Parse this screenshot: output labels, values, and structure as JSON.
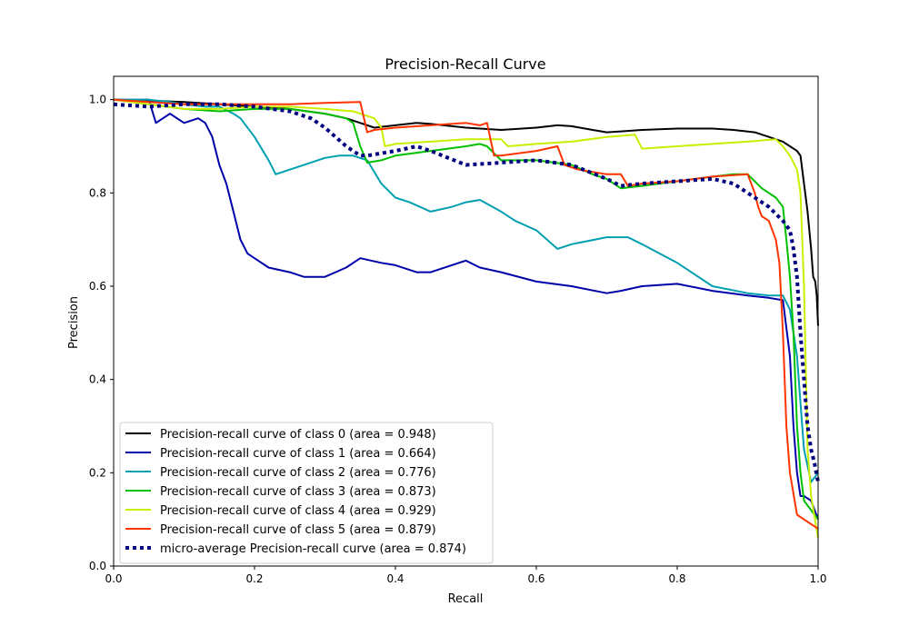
{
  "chart_data": {
    "type": "line",
    "title": "Precision-Recall Curve",
    "xlabel": "Recall",
    "ylabel": "Precision",
    "xlim": [
      0,
      1
    ],
    "ylim": [
      0,
      1.05
    ],
    "xticks": [
      "0.0",
      "0.2",
      "0.4",
      "0.6",
      "0.8",
      "1.0"
    ],
    "yticks": [
      "0.0",
      "0.2",
      "0.4",
      "0.6",
      "0.8",
      "1.0"
    ],
    "grid": false,
    "legend_position": "lower-left",
    "series": [
      {
        "name": "Precision-recall curve of class 0 (area = 0.948)",
        "color": "#000000",
        "style": "solid",
        "x": [
          0.0,
          0.05,
          0.1,
          0.15,
          0.2,
          0.25,
          0.3,
          0.33,
          0.35,
          0.37,
          0.4,
          0.43,
          0.45,
          0.5,
          0.55,
          0.6,
          0.63,
          0.65,
          0.68,
          0.7,
          0.72,
          0.75,
          0.8,
          0.85,
          0.88,
          0.91,
          0.93,
          0.95,
          0.96,
          0.97,
          0.975,
          0.98,
          0.985,
          0.99,
          0.993,
          0.996,
          0.998,
          1.0
        ],
        "y": [
          1.0,
          0.998,
          0.995,
          0.99,
          0.985,
          0.98,
          0.97,
          0.96,
          0.95,
          0.94,
          0.945,
          0.95,
          0.948,
          0.94,
          0.935,
          0.94,
          0.945,
          0.943,
          0.935,
          0.93,
          0.932,
          0.935,
          0.938,
          0.938,
          0.935,
          0.93,
          0.92,
          0.91,
          0.9,
          0.89,
          0.88,
          0.82,
          0.76,
          0.68,
          0.62,
          0.61,
          0.58,
          0.515
        ]
      },
      {
        "name": "Precision-recall curve of class 1 (area = 0.664)",
        "color": "#0000aa",
        "style": "solid",
        "x": [
          0.0,
          0.05,
          0.06,
          0.08,
          0.1,
          0.12,
          0.13,
          0.14,
          0.15,
          0.16,
          0.17,
          0.18,
          0.19,
          0.2,
          0.22,
          0.25,
          0.27,
          0.3,
          0.33,
          0.35,
          0.38,
          0.4,
          0.43,
          0.45,
          0.5,
          0.52,
          0.55,
          0.6,
          0.65,
          0.7,
          0.72,
          0.75,
          0.8,
          0.85,
          0.9,
          0.93,
          0.95,
          0.96,
          0.965,
          0.97,
          0.975,
          0.98,
          0.99,
          1.0
        ],
        "y": [
          1.0,
          1.0,
          0.95,
          0.97,
          0.95,
          0.96,
          0.95,
          0.92,
          0.86,
          0.82,
          0.76,
          0.7,
          0.67,
          0.66,
          0.64,
          0.63,
          0.62,
          0.62,
          0.64,
          0.66,
          0.65,
          0.645,
          0.63,
          0.63,
          0.655,
          0.64,
          0.63,
          0.61,
          0.6,
          0.585,
          0.59,
          0.6,
          0.605,
          0.59,
          0.58,
          0.575,
          0.57,
          0.45,
          0.3,
          0.2,
          0.15,
          0.15,
          0.14,
          0.1
        ]
      },
      {
        "name": "Precision-recall curve of class 2 (area = 0.776)",
        "color": "#00a0b0",
        "style": "solid",
        "x": [
          0.0,
          0.05,
          0.08,
          0.1,
          0.13,
          0.15,
          0.17,
          0.18,
          0.2,
          0.22,
          0.23,
          0.25,
          0.3,
          0.32,
          0.34,
          0.36,
          0.38,
          0.4,
          0.42,
          0.45,
          0.48,
          0.5,
          0.52,
          0.55,
          0.57,
          0.6,
          0.63,
          0.65,
          0.7,
          0.73,
          0.75,
          0.8,
          0.85,
          0.9,
          0.93,
          0.95,
          0.96,
          0.97,
          0.975,
          0.98,
          0.99,
          1.0
        ],
        "y": [
          1.0,
          1.0,
          0.995,
          0.99,
          0.985,
          0.985,
          0.97,
          0.96,
          0.92,
          0.87,
          0.84,
          0.85,
          0.875,
          0.88,
          0.88,
          0.87,
          0.82,
          0.79,
          0.78,
          0.76,
          0.77,
          0.78,
          0.785,
          0.76,
          0.74,
          0.72,
          0.68,
          0.69,
          0.705,
          0.705,
          0.69,
          0.65,
          0.6,
          0.585,
          0.58,
          0.58,
          0.55,
          0.45,
          0.35,
          0.25,
          0.18,
          0.2
        ]
      },
      {
        "name": "Precision-recall curve of class 3 (area = 0.873)",
        "color": "#00c000",
        "style": "solid",
        "x": [
          0.0,
          0.05,
          0.1,
          0.15,
          0.2,
          0.25,
          0.3,
          0.33,
          0.34,
          0.35,
          0.36,
          0.38,
          0.4,
          0.45,
          0.5,
          0.52,
          0.53,
          0.55,
          0.6,
          0.65,
          0.68,
          0.7,
          0.72,
          0.75,
          0.8,
          0.85,
          0.88,
          0.9,
          0.92,
          0.94,
          0.95,
          0.955,
          0.96,
          0.965,
          0.97,
          0.975,
          0.98,
          1.0
        ],
        "y": [
          1.0,
          0.99,
          0.98,
          0.975,
          0.98,
          0.98,
          0.97,
          0.96,
          0.95,
          0.9,
          0.865,
          0.87,
          0.88,
          0.89,
          0.9,
          0.905,
          0.9,
          0.87,
          0.87,
          0.86,
          0.84,
          0.83,
          0.81,
          0.815,
          0.825,
          0.835,
          0.84,
          0.84,
          0.81,
          0.79,
          0.77,
          0.7,
          0.62,
          0.5,
          0.3,
          0.2,
          0.14,
          0.1
        ]
      },
      {
        "name": "Precision-recall curve of class 4 (area = 0.929)",
        "color": "#ccee00",
        "style": "solid",
        "x": [
          0.0,
          0.05,
          0.1,
          0.15,
          0.2,
          0.25,
          0.3,
          0.34,
          0.35,
          0.37,
          0.38,
          0.385,
          0.4,
          0.45,
          0.5,
          0.55,
          0.56,
          0.6,
          0.65,
          0.7,
          0.74,
          0.75,
          0.8,
          0.85,
          0.9,
          0.94,
          0.95,
          0.96,
          0.97,
          0.975,
          0.98,
          0.985,
          0.99,
          1.0
        ],
        "y": [
          1.0,
          0.99,
          0.98,
          0.98,
          0.985,
          0.985,
          0.98,
          0.975,
          0.97,
          0.96,
          0.94,
          0.9,
          0.905,
          0.91,
          0.915,
          0.915,
          0.9,
          0.905,
          0.91,
          0.92,
          0.925,
          0.895,
          0.9,
          0.905,
          0.91,
          0.915,
          0.9,
          0.88,
          0.85,
          0.8,
          0.6,
          0.25,
          0.15,
          0.06
        ]
      },
      {
        "name": "Precision-recall curve of class 5 (area = 0.879)",
        "color": "#ff3300",
        "style": "solid",
        "x": [
          0.0,
          0.05,
          0.1,
          0.15,
          0.2,
          0.25,
          0.3,
          0.35,
          0.36,
          0.37,
          0.4,
          0.45,
          0.5,
          0.52,
          0.53,
          0.54,
          0.55,
          0.6,
          0.63,
          0.64,
          0.66,
          0.7,
          0.72,
          0.73,
          0.75,
          0.8,
          0.85,
          0.9,
          0.91,
          0.915,
          0.92,
          0.93,
          0.94,
          0.945,
          0.95,
          0.955,
          0.96,
          0.97,
          0.98,
          1.0
        ],
        "y": [
          1.0,
          0.995,
          0.99,
          0.99,
          0.99,
          0.99,
          0.993,
          0.995,
          0.93,
          0.935,
          0.94,
          0.945,
          0.95,
          0.945,
          0.95,
          0.88,
          0.88,
          0.89,
          0.9,
          0.86,
          0.85,
          0.84,
          0.84,
          0.815,
          0.82,
          0.825,
          0.835,
          0.84,
          0.8,
          0.77,
          0.75,
          0.74,
          0.7,
          0.65,
          0.5,
          0.3,
          0.2,
          0.11,
          0.1,
          0.08
        ]
      },
      {
        "name": "micro-average Precision-recall curve (area = 0.874)",
        "color": "#000080",
        "style": "dotted",
        "x": [
          0.0,
          0.05,
          0.1,
          0.15,
          0.2,
          0.25,
          0.28,
          0.3,
          0.33,
          0.35,
          0.36,
          0.38,
          0.4,
          0.43,
          0.45,
          0.5,
          0.55,
          0.6,
          0.65,
          0.7,
          0.72,
          0.75,
          0.8,
          0.85,
          0.88,
          0.9,
          0.93,
          0.95,
          0.96,
          0.965,
          0.97,
          0.975,
          0.98,
          0.985,
          0.99,
          0.995,
          1.0
        ],
        "y": [
          0.99,
          0.985,
          0.99,
          0.99,
          0.985,
          0.975,
          0.96,
          0.94,
          0.9,
          0.88,
          0.88,
          0.885,
          0.89,
          0.9,
          0.89,
          0.86,
          0.865,
          0.87,
          0.86,
          0.83,
          0.815,
          0.82,
          0.825,
          0.83,
          0.82,
          0.8,
          0.77,
          0.74,
          0.72,
          0.68,
          0.62,
          0.5,
          0.4,
          0.3,
          0.25,
          0.22,
          0.18
        ]
      }
    ]
  }
}
